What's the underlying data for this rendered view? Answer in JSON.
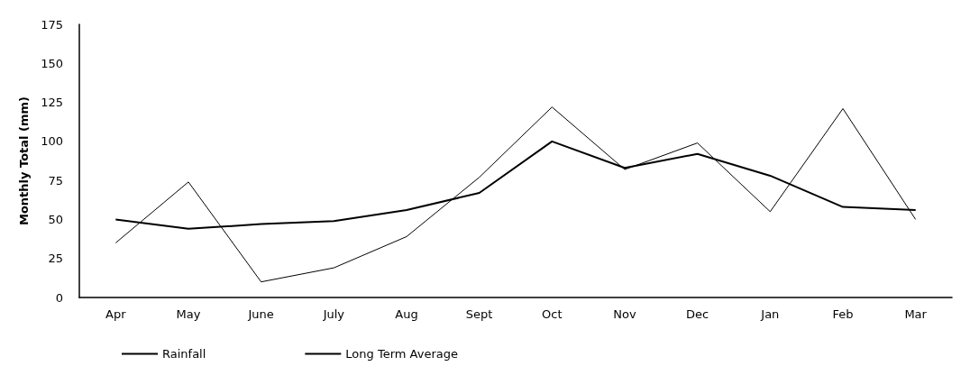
{
  "chart_data": {
    "type": "line",
    "ylabel": "Monthly Total (mm)",
    "categories": [
      "Apr",
      "May",
      "June",
      "July",
      "Aug",
      "Sept",
      "Oct",
      "Nov",
      "Dec",
      "Jan",
      "Feb",
      "Mar"
    ],
    "series": [
      {
        "name": "Rainfall",
        "color": "#000000",
        "values": [
          35,
          74,
          10,
          19,
          39,
          77,
          122,
          82,
          99,
          55,
          121,
          50
        ]
      },
      {
        "name": "Long Term Average",
        "color": "#000000",
        "values": [
          50,
          44,
          47,
          49,
          56,
          67,
          100,
          83,
          92,
          78,
          58,
          56
        ]
      }
    ],
    "ylim": [
      0,
      175
    ],
    "yticks": [
      0,
      25,
      50,
      75,
      100,
      125,
      150,
      175
    ],
    "grid": false,
    "legend": "bottom left",
    "marker": "none"
  }
}
